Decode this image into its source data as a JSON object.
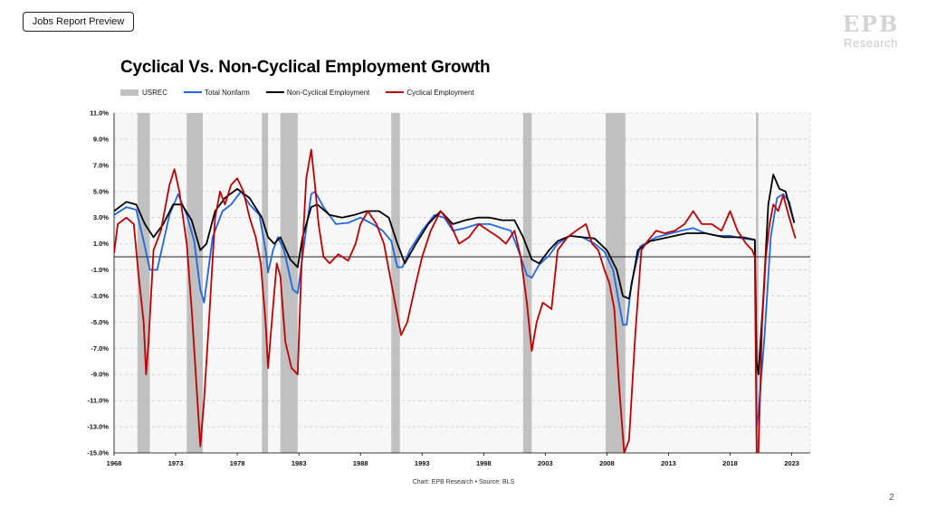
{
  "header": {
    "tag_label": "Jobs Report Preview"
  },
  "logo": {
    "mark": "EPB",
    "sub": "Research"
  },
  "footer": {
    "source": "Chart: EPB Research •  Source: BLS",
    "page_number": "2"
  },
  "colors": {
    "usrec": "#c0c0c0",
    "total_nonfarm": "#1f66e5",
    "non_cyclical": "#000000",
    "cyclical": "#c00000",
    "plot_bg": "#f7f7f7"
  },
  "chart_data": {
    "type": "line",
    "title": "Cyclical Vs. Non-Cyclical Employment Growth",
    "xlabel": "",
    "ylabel": "",
    "x_range": [
      1968,
      2024.5
    ],
    "ylim": [
      -15,
      11
    ],
    "y_ticks": [
      11,
      9,
      7,
      5,
      3,
      1,
      -1,
      -3,
      -5,
      -7,
      -9,
      -11,
      -13,
      -15
    ],
    "y_tick_labels": [
      "11.0%",
      "9.0%",
      "7.0%",
      "5.0%",
      "3.0%",
      "1.0%",
      "-1.0%",
      "-3.0%",
      "-5.0%",
      "-7.0%",
      "-9.0%",
      "-11.0%",
      "-13.0%",
      "-15.0%"
    ],
    "x_ticks": [
      1968,
      1973,
      1978,
      1983,
      1988,
      1993,
      1998,
      2003,
      2008,
      2013,
      2018,
      2023
    ],
    "x_tick_labels": [
      "1968",
      "1973",
      "1978",
      "1983",
      "1988",
      "1993",
      "1998",
      "2003",
      "2008",
      "2013",
      "2018",
      "2023"
    ],
    "legend": [
      "USREC",
      "Total Nonfarm",
      "Non-Cyclical Employment",
      "Cyclical Employment"
    ],
    "recessions": [
      [
        1969.9,
        1970.9
      ],
      [
        1973.9,
        1975.2
      ],
      [
        1980.0,
        1980.5
      ],
      [
        1981.5,
        1982.9
      ],
      [
        1990.5,
        1991.2
      ],
      [
        2001.2,
        2001.9
      ],
      [
        2007.9,
        2009.5
      ],
      [
        2020.1,
        2020.3
      ]
    ],
    "grid": true,
    "series": [
      {
        "name": "Total Nonfarm",
        "x": [
          1968.0,
          1969.0,
          1969.8,
          1970.5,
          1970.9,
          1971.5,
          1972.5,
          1973.2,
          1973.9,
          1974.5,
          1975.0,
          1975.3,
          1976.0,
          1976.8,
          1977.5,
          1978.3,
          1979.0,
          1979.8,
          1980.3,
          1980.5,
          1980.9,
          1981.3,
          1981.8,
          1982.5,
          1982.9,
          1983.5,
          1984.0,
          1984.3,
          1985.0,
          1986.0,
          1987.0,
          1988.0,
          1989.0,
          1989.8,
          1990.5,
          1991.0,
          1991.4,
          1992.0,
          1993.0,
          1994.0,
          1994.8,
          1995.5,
          1996.5,
          1997.5,
          1998.5,
          1999.5,
          2000.2,
          2001.0,
          2001.5,
          2001.9,
          2002.5,
          2003.3,
          2004.0,
          2005.0,
          2006.0,
          2007.0,
          2007.8,
          2008.5,
          2009.3,
          2009.6,
          2010.0,
          2010.7,
          2012.0,
          2014.0,
          2015.0,
          2016.0,
          2017.0,
          2018.0,
          2019.0,
          2020.0,
          2020.15,
          2020.3,
          2020.8,
          2021.3,
          2021.8,
          2022.3,
          2022.8,
          2023.2
        ],
        "values": [
          3.2,
          3.8,
          3.6,
          0.8,
          -1.0,
          -1.0,
          3.2,
          4.8,
          3.2,
          1.2,
          -2.5,
          -3.5,
          1.5,
          3.5,
          4.0,
          5.0,
          4.0,
          3.2,
          0.5,
          -1.2,
          0.5,
          1.5,
          0.5,
          -2.5,
          -2.8,
          1.5,
          4.8,
          5.0,
          3.8,
          2.5,
          2.6,
          3.0,
          2.5,
          2.0,
          1.2,
          -0.8,
          -0.8,
          0.5,
          2.0,
          3.2,
          3.0,
          2.0,
          2.2,
          2.5,
          2.5,
          2.2,
          2.0,
          0.0,
          -1.4,
          -1.6,
          -0.6,
          0.1,
          1.0,
          1.6,
          1.5,
          1.0,
          0.4,
          -1.0,
          -5.2,
          -5.2,
          -2.0,
          0.8,
          1.5,
          2.0,
          2.2,
          1.8,
          1.6,
          1.6,
          1.4,
          1.3,
          -13.0,
          -12.0,
          -6.0,
          1.5,
          4.5,
          4.8,
          4.2,
          2.6
        ]
      },
      {
        "name": "Non-Cyclical Employment",
        "x": [
          1968.0,
          1969.0,
          1969.8,
          1970.5,
          1971.2,
          1972.0,
          1972.8,
          1973.5,
          1974.3,
          1975.0,
          1975.5,
          1976.2,
          1977.0,
          1978.0,
          1979.0,
          1980.0,
          1980.5,
          1981.0,
          1981.5,
          1982.3,
          1982.9,
          1983.3,
          1984.0,
          1984.5,
          1985.5,
          1986.5,
          1987.5,
          1988.5,
          1989.5,
          1990.3,
          1991.0,
          1991.6,
          1992.5,
          1993.5,
          1994.5,
          1995.5,
          1996.5,
          1997.5,
          1998.5,
          1999.5,
          2000.5,
          2001.2,
          2001.9,
          2002.5,
          2003.3,
          2004.0,
          2005.0,
          2006.0,
          2007.0,
          2008.0,
          2008.8,
          2009.3,
          2009.8,
          2010.5,
          2011.5,
          2013.0,
          2014.5,
          2016.0,
          2017.5,
          2019.0,
          2020.0,
          2020.15,
          2020.3,
          2020.7,
          2021.1,
          2021.5,
          2022.0,
          2022.5,
          2023.2
        ],
        "values": [
          3.5,
          4.2,
          4.0,
          2.5,
          1.5,
          2.5,
          4.0,
          4.0,
          2.8,
          0.5,
          1.0,
          3.5,
          4.5,
          5.2,
          4.5,
          3.0,
          1.5,
          1.0,
          1.5,
          -0.2,
          -0.8,
          1.5,
          3.8,
          4.0,
          3.2,
          3.0,
          3.2,
          3.5,
          3.5,
          3.0,
          1.0,
          -0.5,
          1.0,
          2.5,
          3.5,
          2.5,
          2.8,
          3.0,
          3.0,
          2.8,
          2.8,
          1.5,
          -0.2,
          -0.5,
          0.5,
          1.2,
          1.6,
          1.5,
          1.4,
          0.5,
          -1.0,
          -3.0,
          -3.2,
          0.5,
          1.2,
          1.5,
          1.8,
          1.8,
          1.5,
          1.5,
          1.3,
          -8.0,
          -9.0,
          -3.0,
          4.0,
          6.3,
          5.2,
          5.0,
          2.6
        ]
      },
      {
        "name": "Cyclical Employment",
        "x": [
          1968.0,
          1968.3,
          1969.0,
          1969.6,
          1970.0,
          1970.4,
          1970.6,
          1970.8,
          1971.2,
          1971.8,
          1972.5,
          1972.9,
          1973.3,
          1973.9,
          1974.3,
          1974.7,
          1975.0,
          1975.3,
          1975.7,
          1976.2,
          1976.6,
          1977.0,
          1977.5,
          1978.0,
          1978.5,
          1979.0,
          1979.5,
          1979.9,
          1980.3,
          1980.5,
          1980.8,
          1981.2,
          1981.5,
          1981.9,
          1982.4,
          1982.9,
          1983.2,
          1983.6,
          1984.0,
          1984.3,
          1984.6,
          1985.0,
          1985.5,
          1986.2,
          1987.0,
          1987.6,
          1988.0,
          1988.6,
          1989.3,
          1989.9,
          1990.4,
          1990.9,
          1991.3,
          1991.8,
          1992.5,
          1993.0,
          1993.7,
          1994.5,
          1995.3,
          1996.0,
          1996.8,
          1997.6,
          1998.4,
          1999.2,
          1999.8,
          2000.5,
          2001.0,
          2001.5,
          2001.9,
          2002.3,
          2002.8,
          2003.5,
          2004.0,
          2004.8,
          2005.5,
          2006.3,
          2006.8,
          2007.3,
          2007.8,
          2008.2,
          2008.6,
          2009.0,
          2009.4,
          2009.8,
          2010.3,
          2010.8,
          2011.3,
          2012.0,
          2012.7,
          2013.5,
          2014.3,
          2015.0,
          2015.7,
          2016.5,
          2017.3,
          2018.0,
          2018.6,
          2019.3,
          2019.8,
          2020.0,
          2020.15,
          2020.3,
          2020.6,
          2020.9,
          2021.2,
          2021.5,
          2021.9,
          2022.3,
          2022.8,
          2023.3
        ],
        "values": [
          0.3,
          2.5,
          3.0,
          2.5,
          -1.5,
          -5.0,
          -9.0,
          -6.5,
          0.5,
          2.0,
          5.5,
          6.7,
          5.0,
          1.0,
          -4.0,
          -10.0,
          -14.5,
          -11.0,
          -5.0,
          3.0,
          5.0,
          4.0,
          5.5,
          6.0,
          5.0,
          3.0,
          1.5,
          -0.5,
          -5.0,
          -8.5,
          -5.0,
          -0.5,
          -1.5,
          -6.5,
          -8.5,
          -9.0,
          -1.0,
          6.0,
          8.2,
          5.5,
          2.5,
          0.0,
          -0.5,
          0.2,
          -0.3,
          1.0,
          2.5,
          3.5,
          2.5,
          1.0,
          -1.5,
          -4.0,
          -6.0,
          -5.0,
          -2.0,
          0.0,
          2.0,
          3.5,
          2.5,
          1.0,
          1.5,
          2.5,
          2.0,
          1.5,
          1.0,
          2.0,
          0.0,
          -3.5,
          -7.2,
          -5.0,
          -3.5,
          -4.0,
          0.5,
          1.5,
          2.0,
          2.5,
          1.0,
          0.5,
          -1.0,
          -2.0,
          -4.0,
          -10.0,
          -15.0,
          -14.0,
          -6.0,
          0.5,
          1.2,
          2.0,
          1.8,
          2.0,
          2.5,
          3.5,
          2.5,
          2.5,
          2.0,
          3.5,
          2.0,
          1.0,
          0.5,
          0.0,
          -15.0,
          -15.0,
          -5.0,
          0.0,
          2.5,
          4.0,
          3.5,
          4.7,
          3.0,
          1.4
        ]
      }
    ]
  }
}
